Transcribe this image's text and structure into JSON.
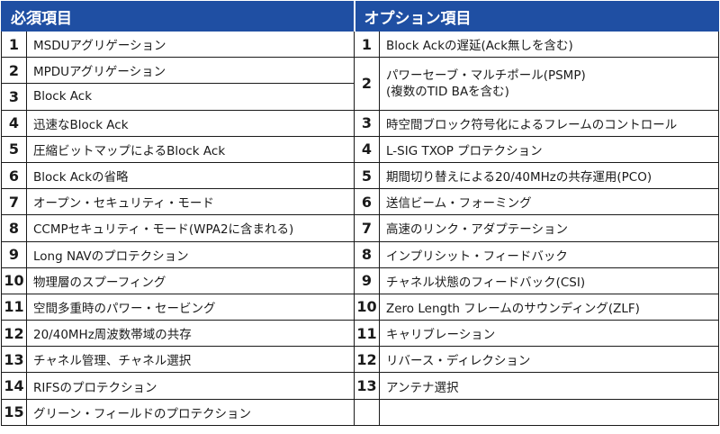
{
  "headers": {
    "required": "必須項目",
    "optional": "オプション項目"
  },
  "required_items": [
    {
      "num": "1",
      "text": "MSDUアグリゲーション"
    },
    {
      "num": "2",
      "text": "MPDUアグリゲーション"
    },
    {
      "num": "3",
      "text": "Block Ack"
    },
    {
      "num": "4",
      "text": "迅速なBlock Ack"
    },
    {
      "num": "5",
      "text": "圧縮ビットマップによるBlock Ack"
    },
    {
      "num": "6",
      "text": "Block Ackの省略"
    },
    {
      "num": "7",
      "text": "オープン・セキュリティ・モード"
    },
    {
      "num": "8",
      "text": "CCMPセキュリティ・モード(WPA2に含まれる)"
    },
    {
      "num": "9",
      "text": "Long NAVのプロテクション"
    },
    {
      "num": "10",
      "text": "物理層のスプーフィング"
    },
    {
      "num": "11",
      "text": "空間多重時のパワー・セービング"
    },
    {
      "num": "12",
      "text": "20/40MHz周波数帯域の共存"
    },
    {
      "num": "13",
      "text": "チャネル管理、チャネル選択"
    },
    {
      "num": "14",
      "text": "RIFSのプロテクション"
    },
    {
      "num": "15",
      "text": "グリーン・フィールドのプロテクション"
    }
  ],
  "optional_items": [
    {
      "num": "1",
      "text": "Block Ackの遅延(Ack無しを含む)"
    },
    {
      "num": "2",
      "text": "パワーセーブ・マルチポール(PSMP)",
      "text2": "(複数のTID BAを含む)"
    },
    {
      "num": "3",
      "text": "時空間ブロック符号化によるフレームのコントロール"
    },
    {
      "num": "4",
      "text": "L-SIG TXOP プロテクション"
    },
    {
      "num": "5",
      "text": "期間切り替えによる20/40MHzの共存運用(PCO)"
    },
    {
      "num": "6",
      "text": "送信ビーム・フォーミング"
    },
    {
      "num": "7",
      "text": "高速のリンク・アダプテーション"
    },
    {
      "num": "8",
      "text": "インプリシット・フィードバック"
    },
    {
      "num": "9",
      "text": "チャネル状態のフィードバック(CSI)"
    },
    {
      "num": "10",
      "text": "Zero Length フレームのサウンディング(ZLF)"
    },
    {
      "num": "11",
      "text": "キャリブレーション"
    },
    {
      "num": "12",
      "text": "リバース・ディレクション"
    },
    {
      "num": "13",
      "text": "アンテナ選択"
    }
  ],
  "colors": {
    "header_bg": "#1f4fa3",
    "header_text": "#ffffff",
    "border": "#1a1a1a"
  }
}
